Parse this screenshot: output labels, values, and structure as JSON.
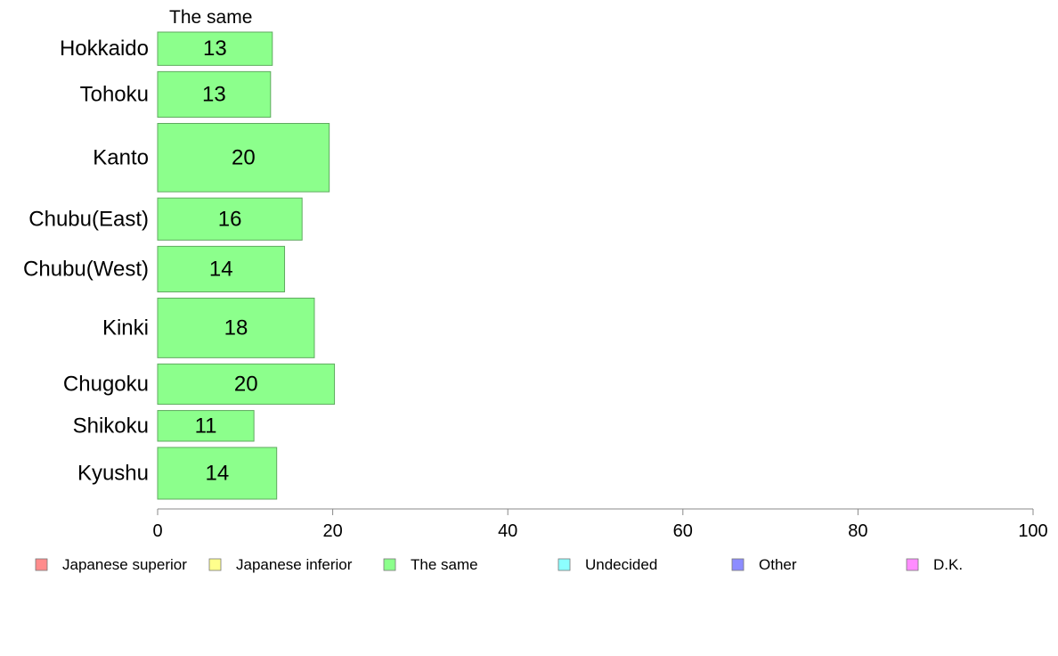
{
  "chart_data": {
    "type": "bar",
    "orientation": "horizontal",
    "series_title": "The same",
    "categories": [
      "Hokkaido",
      "Tohoku",
      "Kanto",
      "Chubu(East)",
      "Chubu(West)",
      "Kinki",
      "Chugoku",
      "Shikoku",
      "Kyushu"
    ],
    "values": [
      13,
      13,
      20,
      16,
      14,
      18,
      20,
      11,
      14
    ],
    "bar_values": [
      13.1,
      12.9,
      19.6,
      16.5,
      14.5,
      17.9,
      20.2,
      11.0,
      13.6
    ],
    "row_weights": [
      38,
      52,
      78,
      48,
      52,
      68,
      46,
      35,
      59
    ],
    "xlim": [
      0,
      100
    ],
    "xticks": [
      0,
      20,
      40,
      60,
      80,
      100
    ],
    "grid": false,
    "bar_color": "#8cff8c",
    "bar_stroke": "#5faa5f",
    "legend_position": "bottom",
    "legend": [
      {
        "label": "Japanese superior",
        "color": "#ff8c8c"
      },
      {
        "label": "Japanese inferior",
        "color": "#ffff8c"
      },
      {
        "label": "The same",
        "color": "#8cff8c"
      },
      {
        "label": "Undecided",
        "color": "#8cffff"
      },
      {
        "label": "Other",
        "color": "#8c8cff"
      },
      {
        "label": "D.K.",
        "color": "#ff8cff"
      }
    ]
  }
}
